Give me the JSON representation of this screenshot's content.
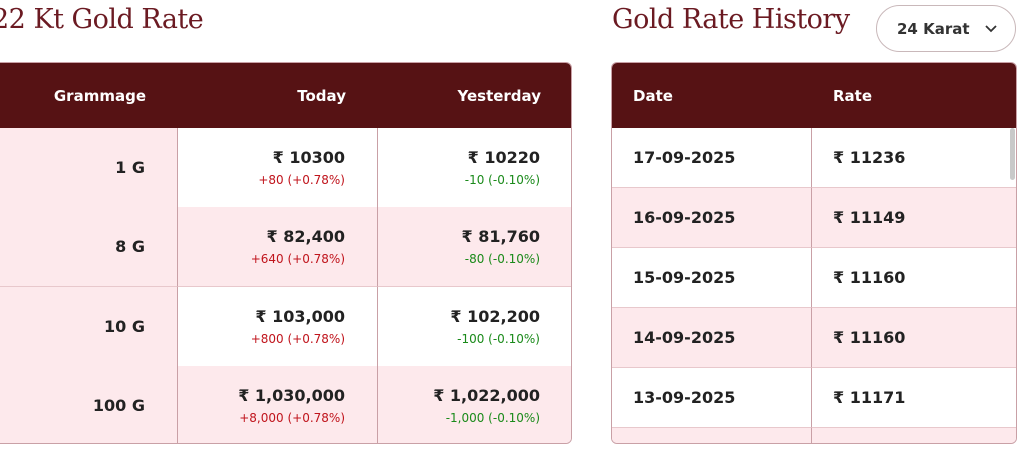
{
  "rate_section": {
    "title": "22 Kt Gold Rate",
    "headers": [
      "Grammage",
      "Today",
      "Yesterday"
    ],
    "rows": [
      {
        "grammage": "1 G",
        "today": "₹ 10300",
        "today_change": "+80 (+0.78%)",
        "yesterday": "₹ 10220",
        "yesterday_change": "-10 (-0.10%)"
      },
      {
        "grammage": "8 G",
        "today": "₹ 82,400",
        "today_change": "+640 (+0.78%)",
        "yesterday": "₹ 81,760",
        "yesterday_change": "-80 (-0.10%)"
      },
      {
        "grammage": "10 G",
        "today": "₹ 103,000",
        "today_change": "+800 (+0.78%)",
        "yesterday": "₹ 102,200",
        "yesterday_change": "-100 (-0.10%)"
      },
      {
        "grammage": "100 G",
        "today": "₹ 1,030,000",
        "today_change": "+8,000 (+0.78%)",
        "yesterday": "₹ 1,022,000",
        "yesterday_change": "-1,000 (-0.10%)"
      }
    ]
  },
  "history_section": {
    "title": "Gold Rate History",
    "dropdown": "24 Karat",
    "headers": [
      "Date",
      "Rate"
    ],
    "rows": [
      {
        "date": "17-09-2025",
        "rate": "₹ 11236"
      },
      {
        "date": "16-09-2025",
        "rate": "₹ 11149"
      },
      {
        "date": "15-09-2025",
        "rate": "₹ 11160"
      },
      {
        "date": "14-09-2025",
        "rate": "₹ 11160"
      },
      {
        "date": "13-09-2025",
        "rate": "₹ 11171"
      }
    ]
  }
}
